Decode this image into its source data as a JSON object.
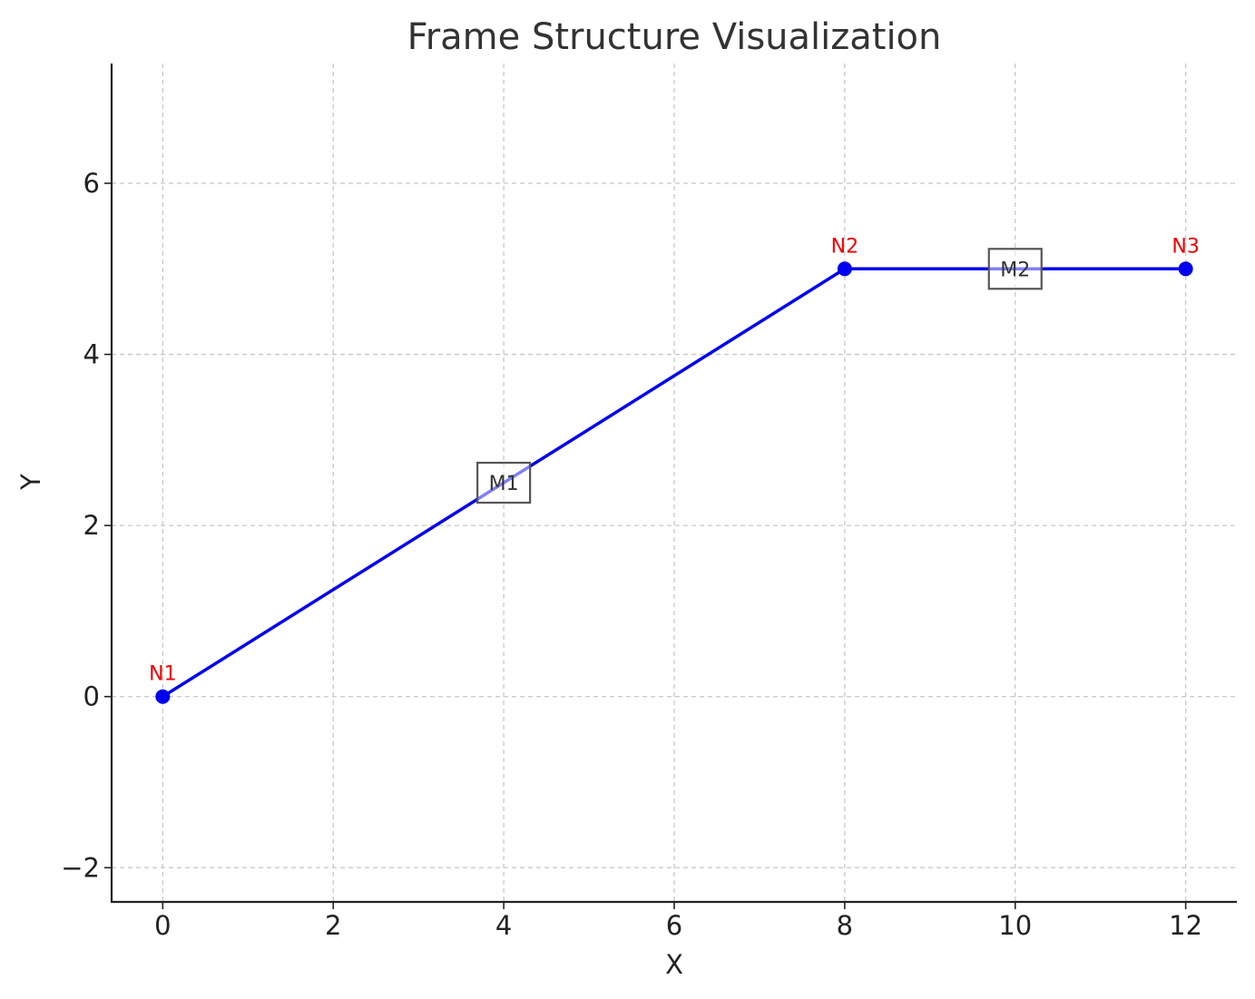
{
  "chart_data": {
    "type": "line",
    "title": "Frame Structure Visualization",
    "xlabel": "X",
    "ylabel": "Y",
    "xlim": [
      -0.6,
      12.6
    ],
    "ylim": [
      -2.4,
      7.4
    ],
    "x_ticks": [
      0,
      2,
      4,
      6,
      8,
      10,
      12
    ],
    "y_ticks": [
      -2,
      0,
      2,
      4,
      6
    ],
    "x_tick_labels": [
      "0",
      "2",
      "4",
      "6",
      "8",
      "10",
      "12"
    ],
    "y_tick_labels": [
      "−2",
      "0",
      "2",
      "4",
      "6"
    ],
    "grid": true,
    "nodes": [
      {
        "label": "N1",
        "x": 0,
        "y": 0
      },
      {
        "label": "N2",
        "x": 8,
        "y": 5
      },
      {
        "label": "N3",
        "x": 12,
        "y": 5
      }
    ],
    "members": [
      {
        "label": "M1",
        "from": "N1",
        "to": "N2"
      },
      {
        "label": "M2",
        "from": "N2",
        "to": "N3"
      }
    ],
    "colors": {
      "member": "#0000ee",
      "node": "#0000ee",
      "node_label": "#ee0000",
      "member_label_border": "#555555",
      "grid": "#c8c8c8",
      "axis": "#222222"
    }
  }
}
